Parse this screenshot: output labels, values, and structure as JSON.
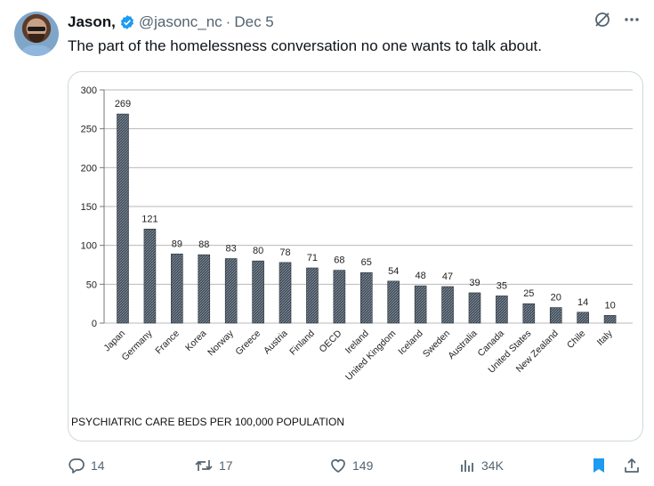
{
  "author": {
    "name": "Jason,",
    "handle": "@jasonc_nc",
    "separator": "·",
    "date": "Dec 5"
  },
  "tweet": {
    "text": "The part of the homelessness conversation no one wants to talk about."
  },
  "icons": {
    "verified": "verified-badge-icon",
    "grok": "grok-icon",
    "more": "more-icon",
    "reply": "reply-icon",
    "retweet": "retweet-icon",
    "like": "like-icon",
    "views": "views-icon",
    "bookmark": "bookmark-icon",
    "share": "share-icon"
  },
  "colors": {
    "verified": "#1d9bf0",
    "bookmark": "#1d9bf0",
    "bar": "#3d4a57",
    "muted": "#536471"
  },
  "actions": {
    "replies": "14",
    "retweets": "17",
    "likes": "149",
    "views": "34K"
  },
  "chart_data": {
    "type": "bar",
    "title": "PSYCHIATRIC CARE BEDS PER 100,000 POPULATION",
    "categories": [
      "Japan",
      "Germany",
      "France",
      "Korea",
      "Norway",
      "Greece",
      "Austria",
      "Finland",
      "OECD",
      "Ireland",
      "United Kingdom",
      "Iceland",
      "Sweden",
      "Australia",
      "Canada",
      "United States",
      "New Zealand",
      "Chile",
      "Italy"
    ],
    "values": [
      269,
      121,
      89,
      88,
      83,
      80,
      78,
      71,
      68,
      65,
      54,
      48,
      47,
      39,
      35,
      25,
      20,
      14,
      10
    ],
    "yticks": [
      0,
      50,
      100,
      150,
      200,
      250,
      300
    ],
    "ylim": [
      0,
      300
    ],
    "grid": true
  }
}
